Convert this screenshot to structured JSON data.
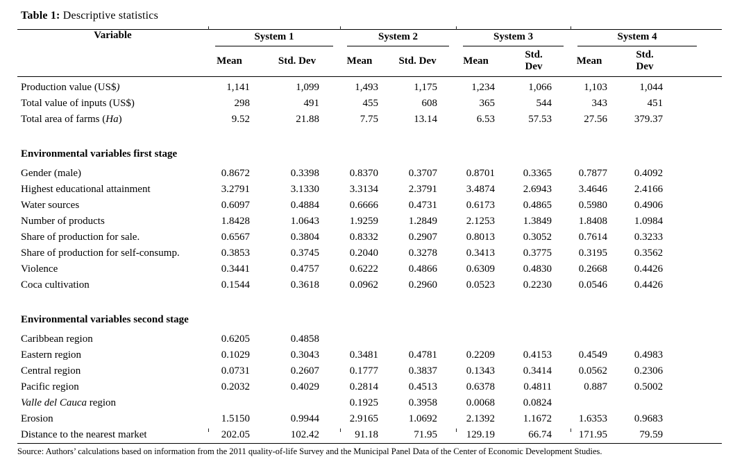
{
  "title": {
    "bold": "Table 1:",
    "rest": " Descriptive statistics"
  },
  "table": {
    "variable_header": "Variable",
    "system_headers": [
      "System 1",
      "System 2",
      "System 3",
      "System 4"
    ],
    "sub_headers": [
      "Mean",
      "Std. Dev",
      "Mean",
      "Std. Dev",
      "Mean",
      "Std. Dev",
      "Mean",
      "Std. Dev"
    ],
    "rows": [
      {
        "label": [
          {
            "t": "Production value (US$",
            "i": false
          },
          {
            "t": ")",
            "i": true
          }
        ],
        "values": [
          "1,141",
          "1,099",
          "1,493",
          "1,175",
          "1,234",
          "1,066",
          "1,103",
          "1,044"
        ]
      },
      {
        "label": "Total value of inputs (US$)",
        "values": [
          "298",
          "491",
          "455",
          "608",
          "365",
          "544",
          "343",
          "451"
        ]
      },
      {
        "label": [
          {
            "t": "Total area of farms (",
            "i": false
          },
          {
            "t": "Ha",
            "i": true
          },
          {
            "t": ")",
            "i": false
          }
        ],
        "values": [
          "9.52",
          "21.88",
          "7.75",
          "13.14",
          "6.53",
          "57.53",
          "27.56",
          "379.37"
        ]
      },
      {
        "type": "spacer"
      },
      {
        "type": "section",
        "label": "Environmental variables first stage"
      },
      {
        "label": "Gender (male)",
        "values": [
          "0.8672",
          "0.3398",
          "0.8370",
          "0.3707",
          "0.8701",
          "0.3365",
          "0.7877",
          "0.4092"
        ]
      },
      {
        "label": "Highest educational attainment",
        "values": [
          "3.2791",
          "3.1330",
          "3.3134",
          "2.3791",
          "3.4874",
          "2.6943",
          "3.4646",
          "2.4166"
        ]
      },
      {
        "label": "Water sources",
        "values": [
          "0.6097",
          "0.4884",
          "0.6666",
          "0.4731",
          "0.6173",
          "0.4865",
          "0.5980",
          "0.4906"
        ]
      },
      {
        "label": "Number of products",
        "values": [
          "1.8428",
          "1.0643",
          "1.9259",
          "1.2849",
          "2.1253",
          "1.3849",
          "1.8408",
          "1.0984"
        ]
      },
      {
        "label": "Share of production for sale.",
        "values": [
          "0.6567",
          "0.3804",
          "0.8332",
          "0.2907",
          "0.8013",
          "0.3052",
          "0.7614",
          "0.3233"
        ]
      },
      {
        "label": "Share of production for self-consump.",
        "values": [
          "0.3853",
          "0.3745",
          "0.2040",
          "0.3278",
          "0.3413",
          "0.3775",
          "0.3195",
          "0.3562"
        ]
      },
      {
        "label": "Violence",
        "values": [
          "0.3441",
          "0.4757",
          "0.6222",
          "0.4866",
          "0.6309",
          "0.4830",
          "0.2668",
          "0.4426"
        ]
      },
      {
        "label": "Coca cultivation",
        "values": [
          "0.1544",
          "0.3618",
          "0.0962",
          "0.2960",
          "0.0523",
          "0.2230",
          "0.0546",
          "0.4426"
        ]
      },
      {
        "type": "spacer"
      },
      {
        "type": "section",
        "label": "Environmental variables second stage"
      },
      {
        "label": "Caribbean region",
        "values": [
          "0.6205",
          "0.4858",
          "",
          "",
          "",
          "",
          "",
          ""
        ]
      },
      {
        "label": "Eastern region",
        "values": [
          "0.1029",
          "0.3043",
          "0.3481",
          "0.4781",
          "0.2209",
          "0.4153",
          "0.4549",
          "0.4983"
        ]
      },
      {
        "label": "Central region",
        "values": [
          "0.0731",
          "0.2607",
          "0.1777",
          "0.3837",
          "0.1343",
          "0.3414",
          "0.0562",
          "0.2306"
        ]
      },
      {
        "label": "Pacific region",
        "values": [
          "0.2032",
          "0.4029",
          "0.2814",
          "0.4513",
          "0.6378",
          "0.4811",
          "0.887",
          "0.5002"
        ]
      },
      {
        "label": [
          {
            "t": "Valle del Cauca",
            "i": true
          },
          {
            "t": " region",
            "i": false
          }
        ],
        "values": [
          "",
          "",
          "0.1925",
          "0.3958",
          "0.0068",
          "0.0824",
          "",
          ""
        ]
      },
      {
        "label": "Erosion",
        "values": [
          "1.5150",
          "0.9944",
          "2.9165",
          "1.0692",
          "2.1392",
          "1.1672",
          "1.6353",
          "0.9683"
        ]
      },
      {
        "label": "Distance to the nearest market",
        "values": [
          "202.05",
          "102.42",
          "91.18",
          "71.95",
          "129.19",
          "66.74",
          "171.95",
          "79.59"
        ]
      }
    ]
  },
  "source": "Source: Authors’ calculations based on information from the 2011 quality-of-life Survey and the Municipal Panel Data of the Center of Economic Development Studies.",
  "colors": {
    "background": "#ffffff",
    "text": "#000000",
    "rule": "#000000"
  }
}
